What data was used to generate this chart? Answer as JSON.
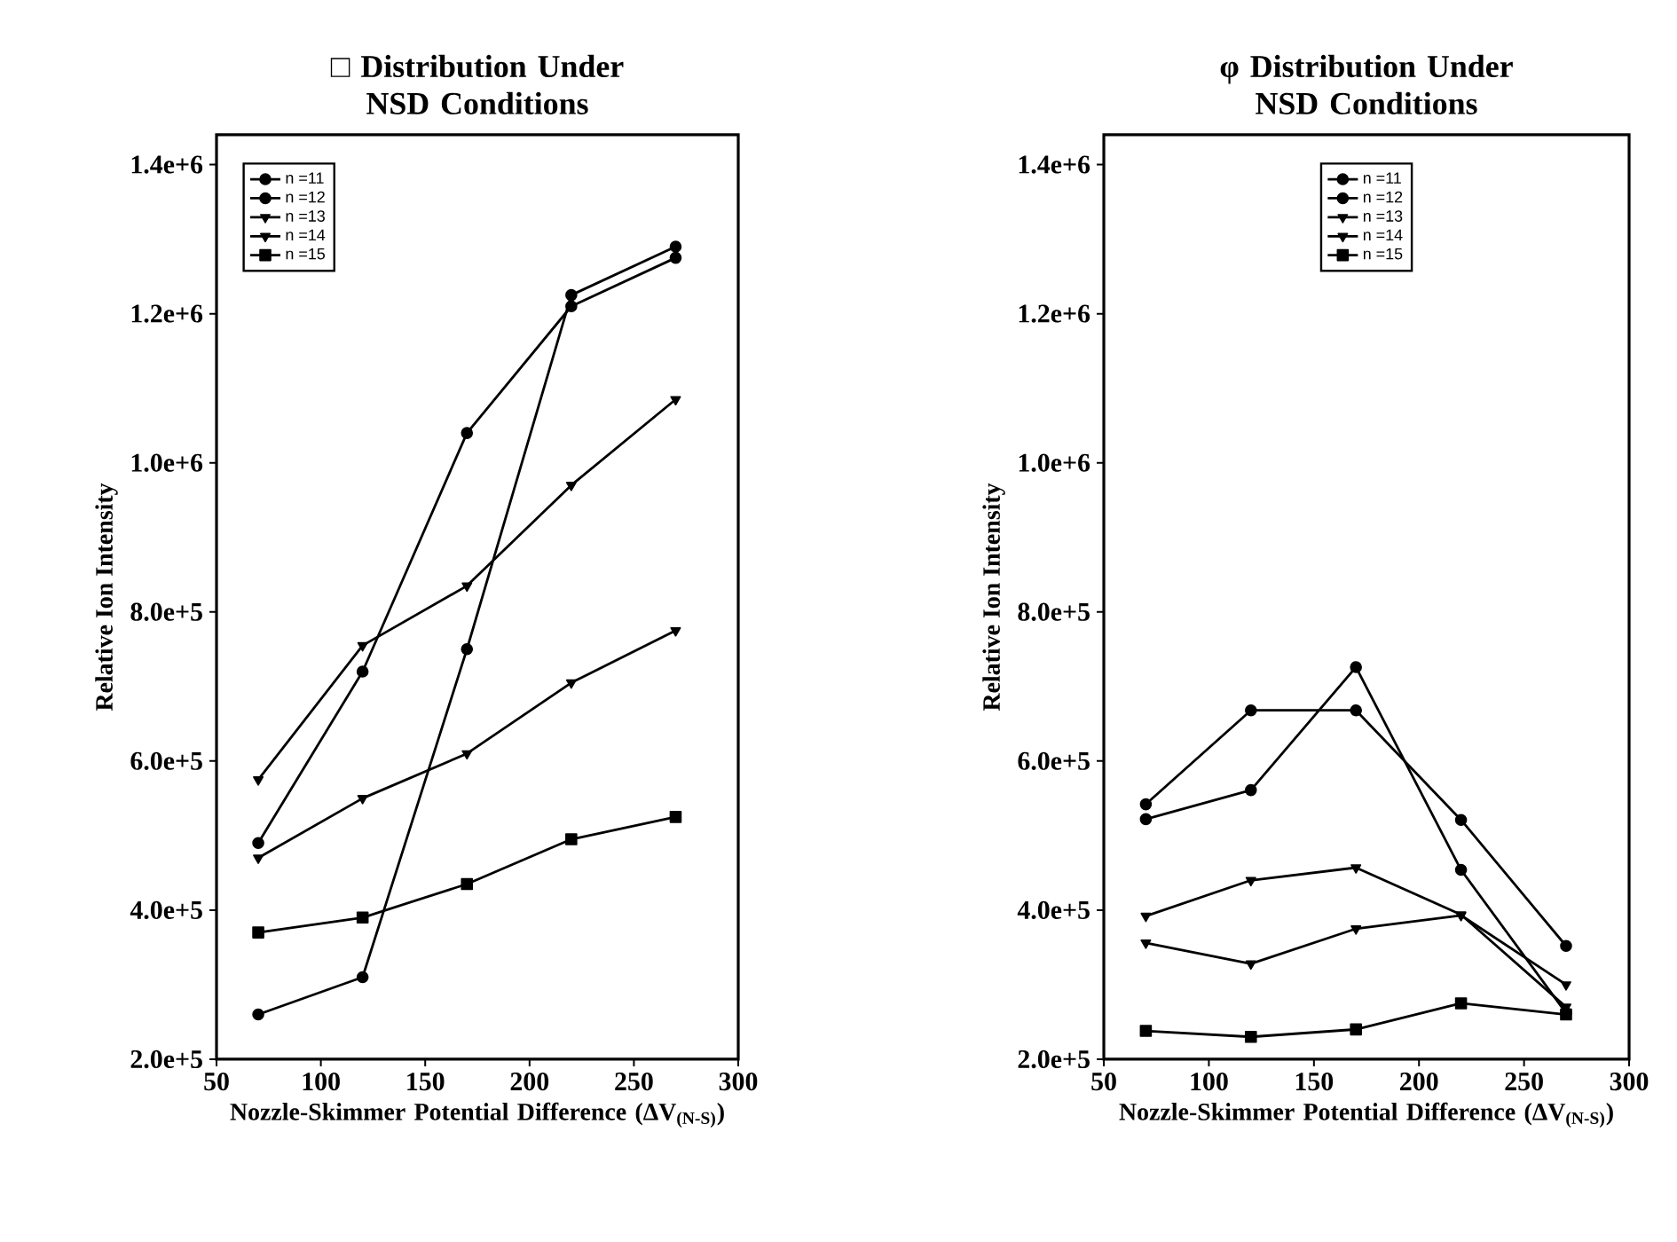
{
  "chart_data": [
    {
      "type": "line",
      "title": "□ Distribution Under NSD Conditions",
      "xlabel": "Nozzle-Skimmer Potential Difference (ΔV$_{(N-S)}$)",
      "ylabel": "Relative Ion Intensity",
      "x": [
        70,
        120,
        170,
        220,
        270
      ],
      "series": [
        {
          "name": "n =11",
          "color": "#000000",
          "marker": "circle",
          "values": [
            490000,
            720000,
            1040000,
            1210000,
            1275000
          ]
        },
        {
          "name": "n =12",
          "color": "#000000",
          "marker": "circle",
          "values": [
            260000,
            310000,
            750000,
            1225000,
            1290000
          ]
        },
        {
          "name": "n =13",
          "color": "#000000",
          "marker": "triangle",
          "values": [
            575000,
            755000,
            835000,
            970000,
            1085000
          ]
        },
        {
          "name": "n =14",
          "color": "#000000",
          "marker": "triangle",
          "values": [
            470000,
            550000,
            610000,
            705000,
            775000
          ]
        },
        {
          "name": "n =15",
          "color": "#000000",
          "marker": "square",
          "values": [
            370000,
            390000,
            435000,
            495000,
            525000
          ]
        }
      ],
      "xlim": [
        50,
        300
      ],
      "xticks": [
        50,
        100,
        150,
        200,
        250,
        300
      ],
      "ylim": [
        200000,
        1440000
      ],
      "yticks": [
        {
          "value": 200000,
          "label": "2.0e+5"
        },
        {
          "value": 400000,
          "label": "4.0e+5"
        },
        {
          "value": 600000,
          "label": "6.0e+5"
        },
        {
          "value": 800000,
          "label": "8.0e+5"
        },
        {
          "value": 1000000,
          "label": "1.0e+6"
        },
        {
          "value": 1200000,
          "label": "1.2e+6"
        },
        {
          "value": 1400000,
          "label": "1.4e+6"
        }
      ],
      "legend": "top left",
      "line_style": "solid"
    },
    {
      "type": "line",
      "title": "φ Distribution Under NSD Conditions",
      "xlabel": "Nozzle-Skimmer Potential Difference (ΔV$_{(N-S)}$)",
      "ylabel": "Relative Ion Intensity",
      "x": [
        70,
        120,
        170,
        220,
        270
      ],
      "series": [
        {
          "name": "n =11",
          "color": "#000000",
          "marker": "circle",
          "values": [
            542000,
            668000,
            668000,
            521000,
            352000
          ]
        },
        {
          "name": "n =12",
          "color": "#000000",
          "marker": "circle",
          "values": [
            522000,
            561000,
            726000,
            454000,
            262000
          ]
        },
        {
          "name": "n =13",
          "color": "#000000",
          "marker": "triangle",
          "values": [
            392000,
            440000,
            457000,
            394000,
            270000
          ]
        },
        {
          "name": "n =14",
          "color": "#000000",
          "marker": "triangle",
          "values": [
            356000,
            328000,
            375000,
            393000,
            300000
          ]
        },
        {
          "name": "n =15",
          "color": "#000000",
          "marker": "square",
          "values": [
            238000,
            230000,
            240000,
            275000,
            260000
          ]
        }
      ],
      "xlim": [
        50,
        300
      ],
      "xticks": [
        50,
        100,
        150,
        200,
        250,
        300
      ],
      "ylim": [
        200000,
        1440000
      ],
      "yticks": [
        {
          "value": 200000,
          "label": "2.0e+5"
        },
        {
          "value": 400000,
          "label": "4.0e+5"
        },
        {
          "value": 600000,
          "label": "6.0e+5"
        },
        {
          "value": 800000,
          "label": "8.0e+5"
        },
        {
          "value": 1000000,
          "label": "1.0e+6"
        },
        {
          "value": 1200000,
          "label": "1.2e+6"
        },
        {
          "value": 1400000,
          "label": "1.4e+6"
        }
      ],
      "legend": "top",
      "line_style": "solid"
    }
  ]
}
